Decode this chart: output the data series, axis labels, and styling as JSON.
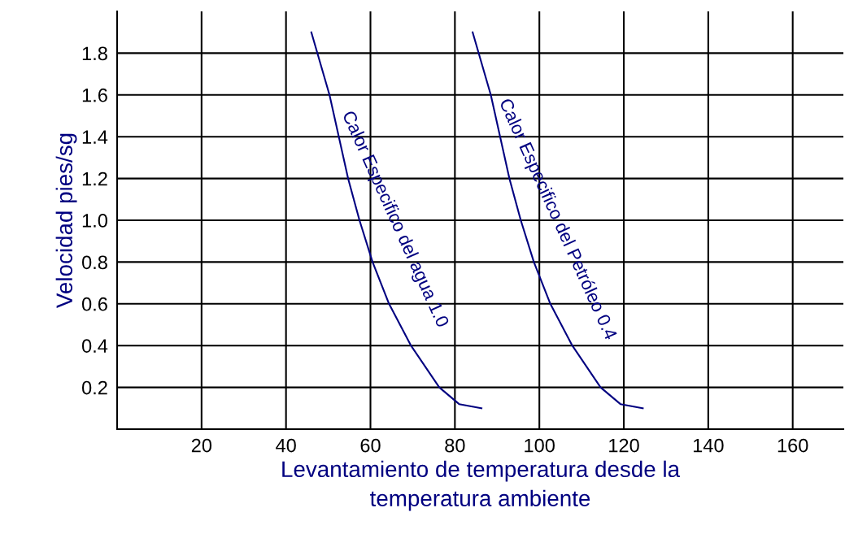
{
  "chart_data": {
    "type": "line",
    "xlabel": "Levantamiento de temperatura desde la temperatura ambiente",
    "ylabel": "Velocidad pies/sg",
    "series": [
      {
        "color": "#000080",
        "x": [
          46.0,
          50.3,
          54.7,
          57.4,
          60.5,
          64.4,
          69.6,
          76.3,
          81.0,
          86.3
        ],
        "values": [
          1.9,
          1.6,
          1.2,
          1.0,
          0.8,
          0.6,
          0.4,
          0.2,
          0.12,
          0.1
        ]
      },
      {
        "color": "#000080",
        "x": [
          84.2,
          88.5,
          92.9,
          95.6,
          98.7,
          102.6,
          107.8,
          114.5,
          119.2,
          124.5
        ],
        "values": [
          1.9,
          1.6,
          1.2,
          1.0,
          0.8,
          0.6,
          0.4,
          0.2,
          0.12,
          0.1
        ]
      }
    ],
    "annotations": [
      "Calor Especifico del agua 1.0",
      "Calor Especifico del Petróleo 0.4"
    ],
    "xlim": [
      0,
      172
    ],
    "ylim": [
      0,
      2.0
    ],
    "xticks": [
      20,
      40,
      60,
      80,
      100,
      120,
      140,
      160
    ],
    "yticks": [
      0.2,
      0.4,
      0.6,
      0.8,
      {
        "value": 1.0,
        "label": "1.0"
      },
      1.2,
      1.4,
      1.6,
      1.8
    ],
    "grid": true,
    "marker": "none",
    "line_style": "solid"
  }
}
